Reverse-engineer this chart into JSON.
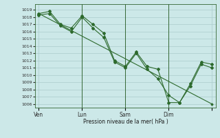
{
  "bg_color": "#cce8e8",
  "grid_color": "#aacccc",
  "line_color": "#2d6a2d",
  "xlabel": "Pression niveau de la mer( hPa )",
  "ylim": [
    1005.5,
    1019.8
  ],
  "yticks": [
    1006,
    1007,
    1008,
    1009,
    1010,
    1011,
    1012,
    1013,
    1014,
    1015,
    1016,
    1017,
    1018,
    1019
  ],
  "xtick_positions": [
    0,
    24,
    48,
    72,
    96
  ],
  "xtick_labels": [
    "Ven",
    "Lun",
    "Sam",
    "Dim",
    ""
  ],
  "vline_positions": [
    24,
    48,
    72
  ],
  "series_straight": [
    [
      0,
      1018.5
    ],
    [
      96,
      1006.0
    ]
  ],
  "series_a_x": [
    0,
    6,
    12,
    18,
    24,
    30,
    36,
    42,
    48,
    54,
    60,
    66,
    72,
    78,
    84,
    90,
    96
  ],
  "series_a_y": [
    1018.5,
    1018.8,
    1017.0,
    1016.5,
    1018.2,
    1017.0,
    1015.8,
    1012.0,
    1011.2,
    1013.2,
    1011.2,
    1010.8,
    1006.2,
    1006.2,
    1008.8,
    1011.8,
    1011.5
  ],
  "series_b_x": [
    0,
    6,
    12,
    18,
    24,
    30,
    36,
    42,
    48,
    54,
    60,
    66,
    72,
    78,
    84,
    90,
    96
  ],
  "series_b_y": [
    1018.3,
    1018.5,
    1016.8,
    1016.0,
    1018.0,
    1016.5,
    1015.2,
    1011.8,
    1011.0,
    1013.0,
    1010.8,
    1009.5,
    1007.2,
    1006.2,
    1008.5,
    1011.5,
    1011.0
  ]
}
